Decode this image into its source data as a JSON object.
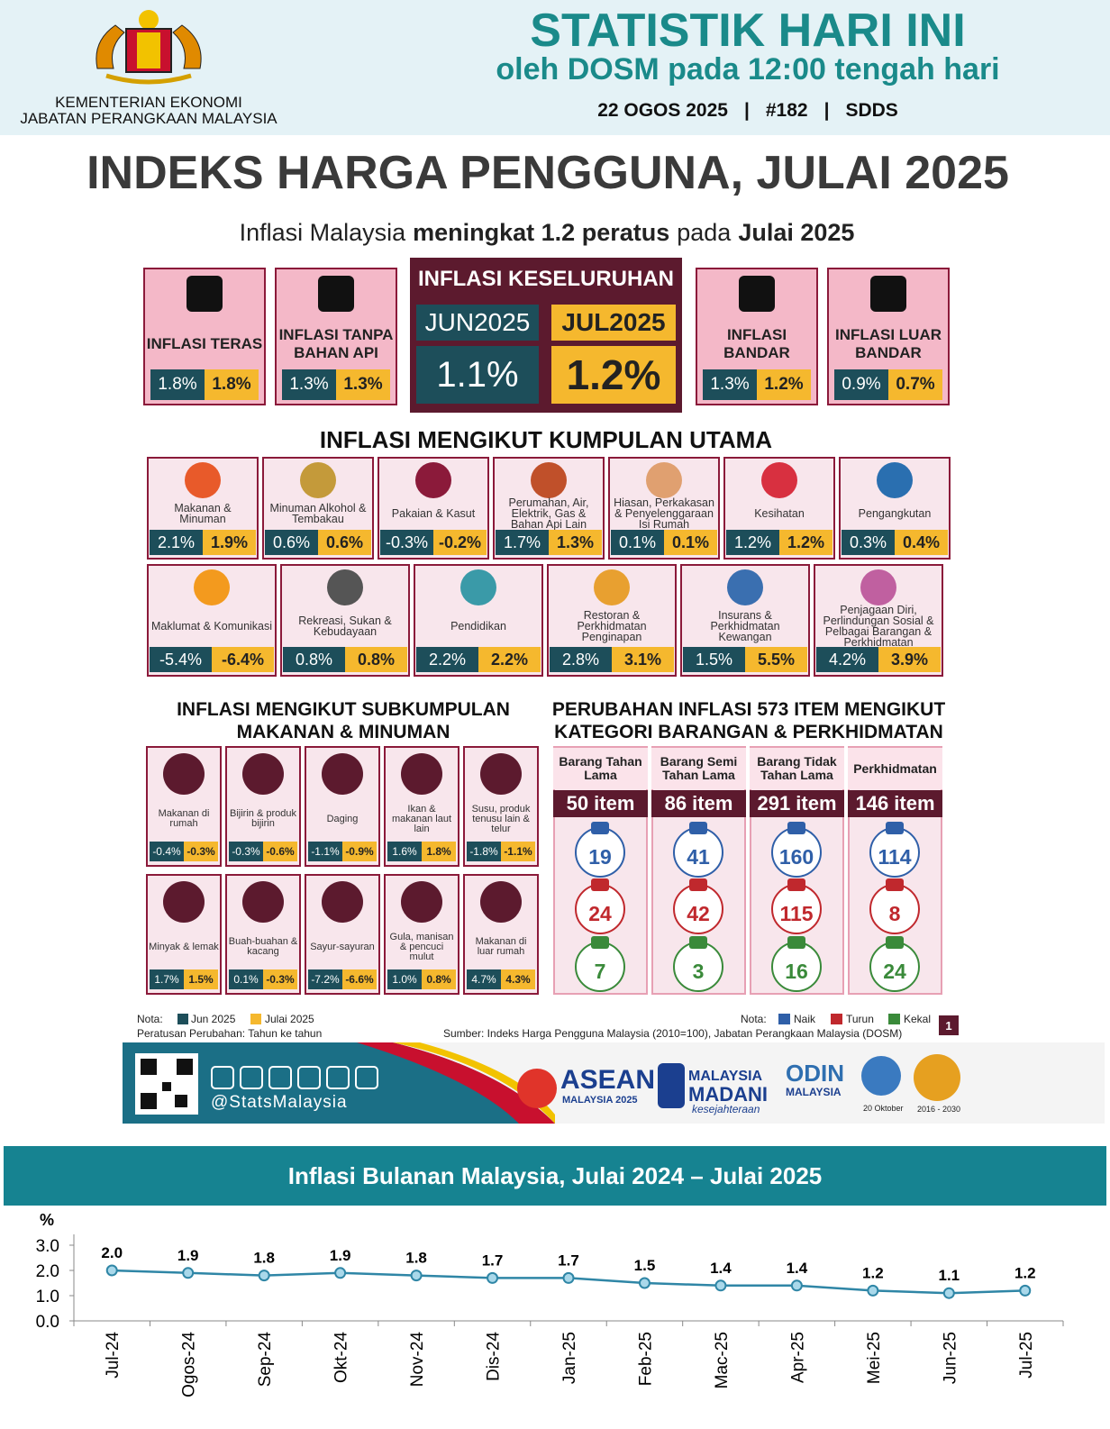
{
  "header": {
    "ministry": "KEMENTERIAN EKONOMI",
    "department": "JABATAN PERANGKAAN MALAYSIA",
    "title": "STATISTIK HARI INI",
    "subtitle": "oleh DOSM pada 12:00 tengah hari",
    "date": "22 OGOS 2025",
    "separator": "|",
    "issue": "#182",
    "tag": "SDDS"
  },
  "main_title": "INDEKS HARGA PENGGUNA, JULAI 2025",
  "headline": {
    "pre": "Inflasi Malaysia",
    "bold1": "meningkat 1.2 peratus",
    "mid": "pada",
    "bold2": "Julai 2025"
  },
  "overall": {
    "title": "INFLASI KESELURUHAN",
    "prev_label": "JUN2025",
    "curr_label": "JUL2025",
    "prev": "1.1%",
    "curr": "1.2%"
  },
  "side_boxes": [
    {
      "label": "INFLASI TERAS",
      "prev": "1.8%",
      "curr": "1.8%"
    },
    {
      "label": "INFLASI TANPA BAHAN API",
      "prev": "1.3%",
      "curr": "1.3%"
    },
    {
      "label": "INFLASI BANDAR",
      "prev": "1.3%",
      "curr": "1.2%"
    },
    {
      "label": "INFLASI LUAR BANDAR",
      "prev": "0.9%",
      "curr": "0.7%"
    }
  ],
  "groups_title": "INFLASI MENGIKUT KUMPULAN UTAMA",
  "groups": [
    {
      "label": "Makanan & Minuman",
      "prev": "2.1%",
      "curr": "1.9%"
    },
    {
      "label": "Minuman Alkohol & Tembakau",
      "prev": "0.6%",
      "curr": "0.6%"
    },
    {
      "label": "Pakaian & Kasut",
      "prev": "-0.3%",
      "curr": "-0.2%"
    },
    {
      "label": "Perumahan, Air, Elektrik, Gas & Bahan Api Lain",
      "prev": "1.7%",
      "curr": "1.3%"
    },
    {
      "label": "Hiasan, Perkakasan & Penyelenggaraan Isi Rumah",
      "prev": "0.1%",
      "curr": "0.1%"
    },
    {
      "label": "Kesihatan",
      "prev": "1.2%",
      "curr": "1.2%"
    },
    {
      "label": "Pengangkutan",
      "prev": "0.3%",
      "curr": "0.4%"
    },
    {
      "label": "Maklumat & Komunikasi",
      "prev": "-5.4%",
      "curr": "-6.4%"
    },
    {
      "label": "Rekreasi, Sukan & Kebudayaan",
      "prev": "0.8%",
      "curr": "0.8%"
    },
    {
      "label": "Pendidikan",
      "prev": "2.2%",
      "curr": "2.2%"
    },
    {
      "label": "Restoran & Perkhidmatan Penginapan",
      "prev": "2.8%",
      "curr": "3.1%"
    },
    {
      "label": "Insurans & Perkhidmatan Kewangan",
      "prev": "1.5%",
      "curr": "5.5%"
    },
    {
      "label": "Penjagaan Diri, Perlindungan Sosial & Pelbagai Barangan & Perkhidmatan",
      "prev": "4.2%",
      "curr": "3.9%"
    }
  ],
  "sub_title": [
    "INFLASI MENGIKUT SUBKUMPULAN",
    "MAKANAN & MINUMAN"
  ],
  "subgroups": [
    {
      "label": "Makanan di rumah",
      "prev": "-0.4%",
      "curr": "-0.3%"
    },
    {
      "label": "Bijirin & produk bijirin",
      "prev": "-0.3%",
      "curr": "-0.6%"
    },
    {
      "label": "Daging",
      "prev": "-1.1%",
      "curr": "-0.9%"
    },
    {
      "label": "Ikan & makanan laut lain",
      "prev": "1.6%",
      "curr": "1.8%"
    },
    {
      "label": "Susu, produk tenusu lain & telur",
      "prev": "-1.8%",
      "curr": "-1.1%"
    },
    {
      "label": "Minyak & lemak",
      "prev": "1.7%",
      "curr": "1.5%"
    },
    {
      "label": "Buah-buahan & kacang",
      "prev": "0.1%",
      "curr": "-0.3%"
    },
    {
      "label": "Sayur-sayuran",
      "prev": "-7.2%",
      "curr": "-6.6%"
    },
    {
      "label": "Gula, manisan & pencuci mulut",
      "prev": "1.0%",
      "curr": "0.8%"
    },
    {
      "label": "Makanan di luar rumah",
      "prev": "4.7%",
      "curr": "4.3%"
    }
  ],
  "items_title": [
    "PERUBAHAN INFLASI 573 ITEM MENGIKUT",
    "KATEGORI BARANGAN & PERKHIDMATAN"
  ],
  "item_categories": [
    {
      "name": "Barang Tahan Lama",
      "count": "50 item",
      "up": 19,
      "down": 24,
      "same": 7
    },
    {
      "name": "Barang Semi Tahan Lama",
      "count": "86 item",
      "up": 41,
      "down": 42,
      "same": 3
    },
    {
      "name": "Barang Tidak Tahan Lama",
      "count": "291 item",
      "up": 160,
      "down": 115,
      "same": 16
    },
    {
      "name": "Perkhidmatan",
      "count": "146 item",
      "up": 114,
      "down": 8,
      "same": 24
    }
  ],
  "notes": {
    "label": "Nota:",
    "prev": "Jun 2025",
    "curr": "Julai 2025",
    "basis": "Peratusan Perubahan: Tahun ke tahun",
    "label2": "Nota:",
    "up": "Naik",
    "down": "Turun",
    "same": "Kekal",
    "source": "Sumber: Indeks Harga Pengguna Malaysia (2010=100), Jabatan Perangkaan Malaysia (DOSM)",
    "page": "1"
  },
  "footer": {
    "social": "@StatsMalaysia",
    "asean": "ASEAN",
    "asean_sub": "MALAYSIA 2025",
    "madani1": "MALAYSIA",
    "madani2": "MADANI",
    "madani3": "kesejahteraan",
    "odin": "ODIN",
    "odin_sub": "MALAYSIA",
    "stats_day": "20 Oktober",
    "sdg": "2016 - 2030"
  },
  "chart_data": {
    "type": "line",
    "title": "Inflasi Bulanan Malaysia, Julai 2024 – Julai 2025",
    "y_label": "%",
    "categories": [
      "Jul-24",
      "Ogos-24",
      "Sep-24",
      "Okt-24",
      "Nov-24",
      "Dis-24",
      "Jan-25",
      "Feb-25",
      "Mac-25",
      "Apr-25",
      "Mei-25",
      "Jun-25",
      "Jul-25"
    ],
    "values": [
      2.0,
      1.9,
      1.8,
      1.9,
      1.8,
      1.7,
      1.7,
      1.5,
      1.4,
      1.4,
      1.2,
      1.1,
      1.2
    ],
    "value_labels": [
      "2.0",
      "1.9",
      "1.8",
      "1.9",
      "1.8",
      "1.7",
      "1.7",
      "1.5",
      "1.4",
      "1.4",
      "1.2",
      "1.1",
      "1.2"
    ],
    "color": "#2f86a6",
    "ylim": [
      0,
      3
    ],
    "yticks": [
      {
        "value": 0,
        "label": "0.0"
      },
      {
        "value": 1,
        "label": "1.0"
      },
      {
        "value": 2,
        "label": "2.0"
      },
      {
        "value": 3,
        "label": "3.0"
      }
    ]
  }
}
